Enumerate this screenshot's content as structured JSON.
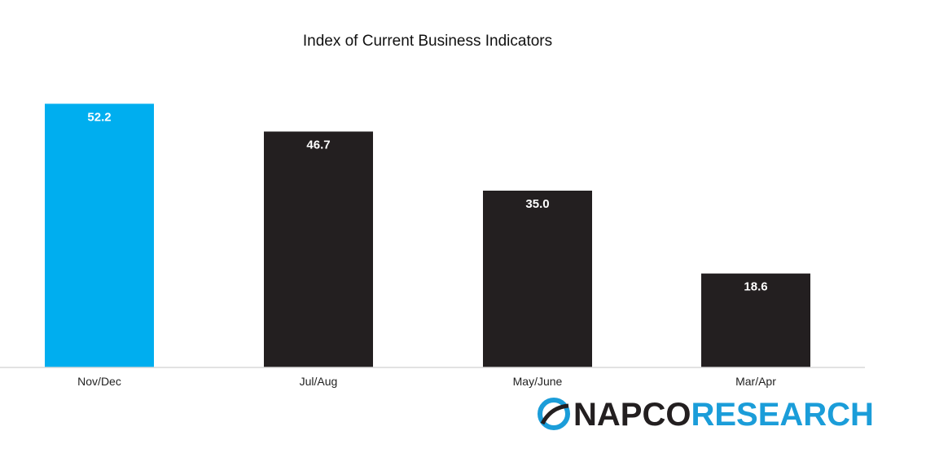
{
  "chart_data": {
    "type": "bar",
    "title": "Index of Current Business Indicators",
    "categories": [
      "Nov/Dec",
      "Jul/Aug",
      "May/June",
      "Mar/Apr"
    ],
    "values": [
      52.2,
      46.7,
      35.0,
      18.6
    ],
    "value_labels": [
      "52.2",
      "46.7",
      "35.0",
      "18.6"
    ],
    "ylim": [
      0,
      55
    ],
    "grid": false,
    "legend": "none",
    "colors": [
      "#00aeef",
      "#231f20",
      "#231f20",
      "#231f20"
    ],
    "baseline_color": "#d9d9d9"
  },
  "logo": {
    "part1": "NAPCO",
    "part2": "RESEARCH",
    "color_dark": "#231f20",
    "color_accent": "#1b9dd9"
  }
}
